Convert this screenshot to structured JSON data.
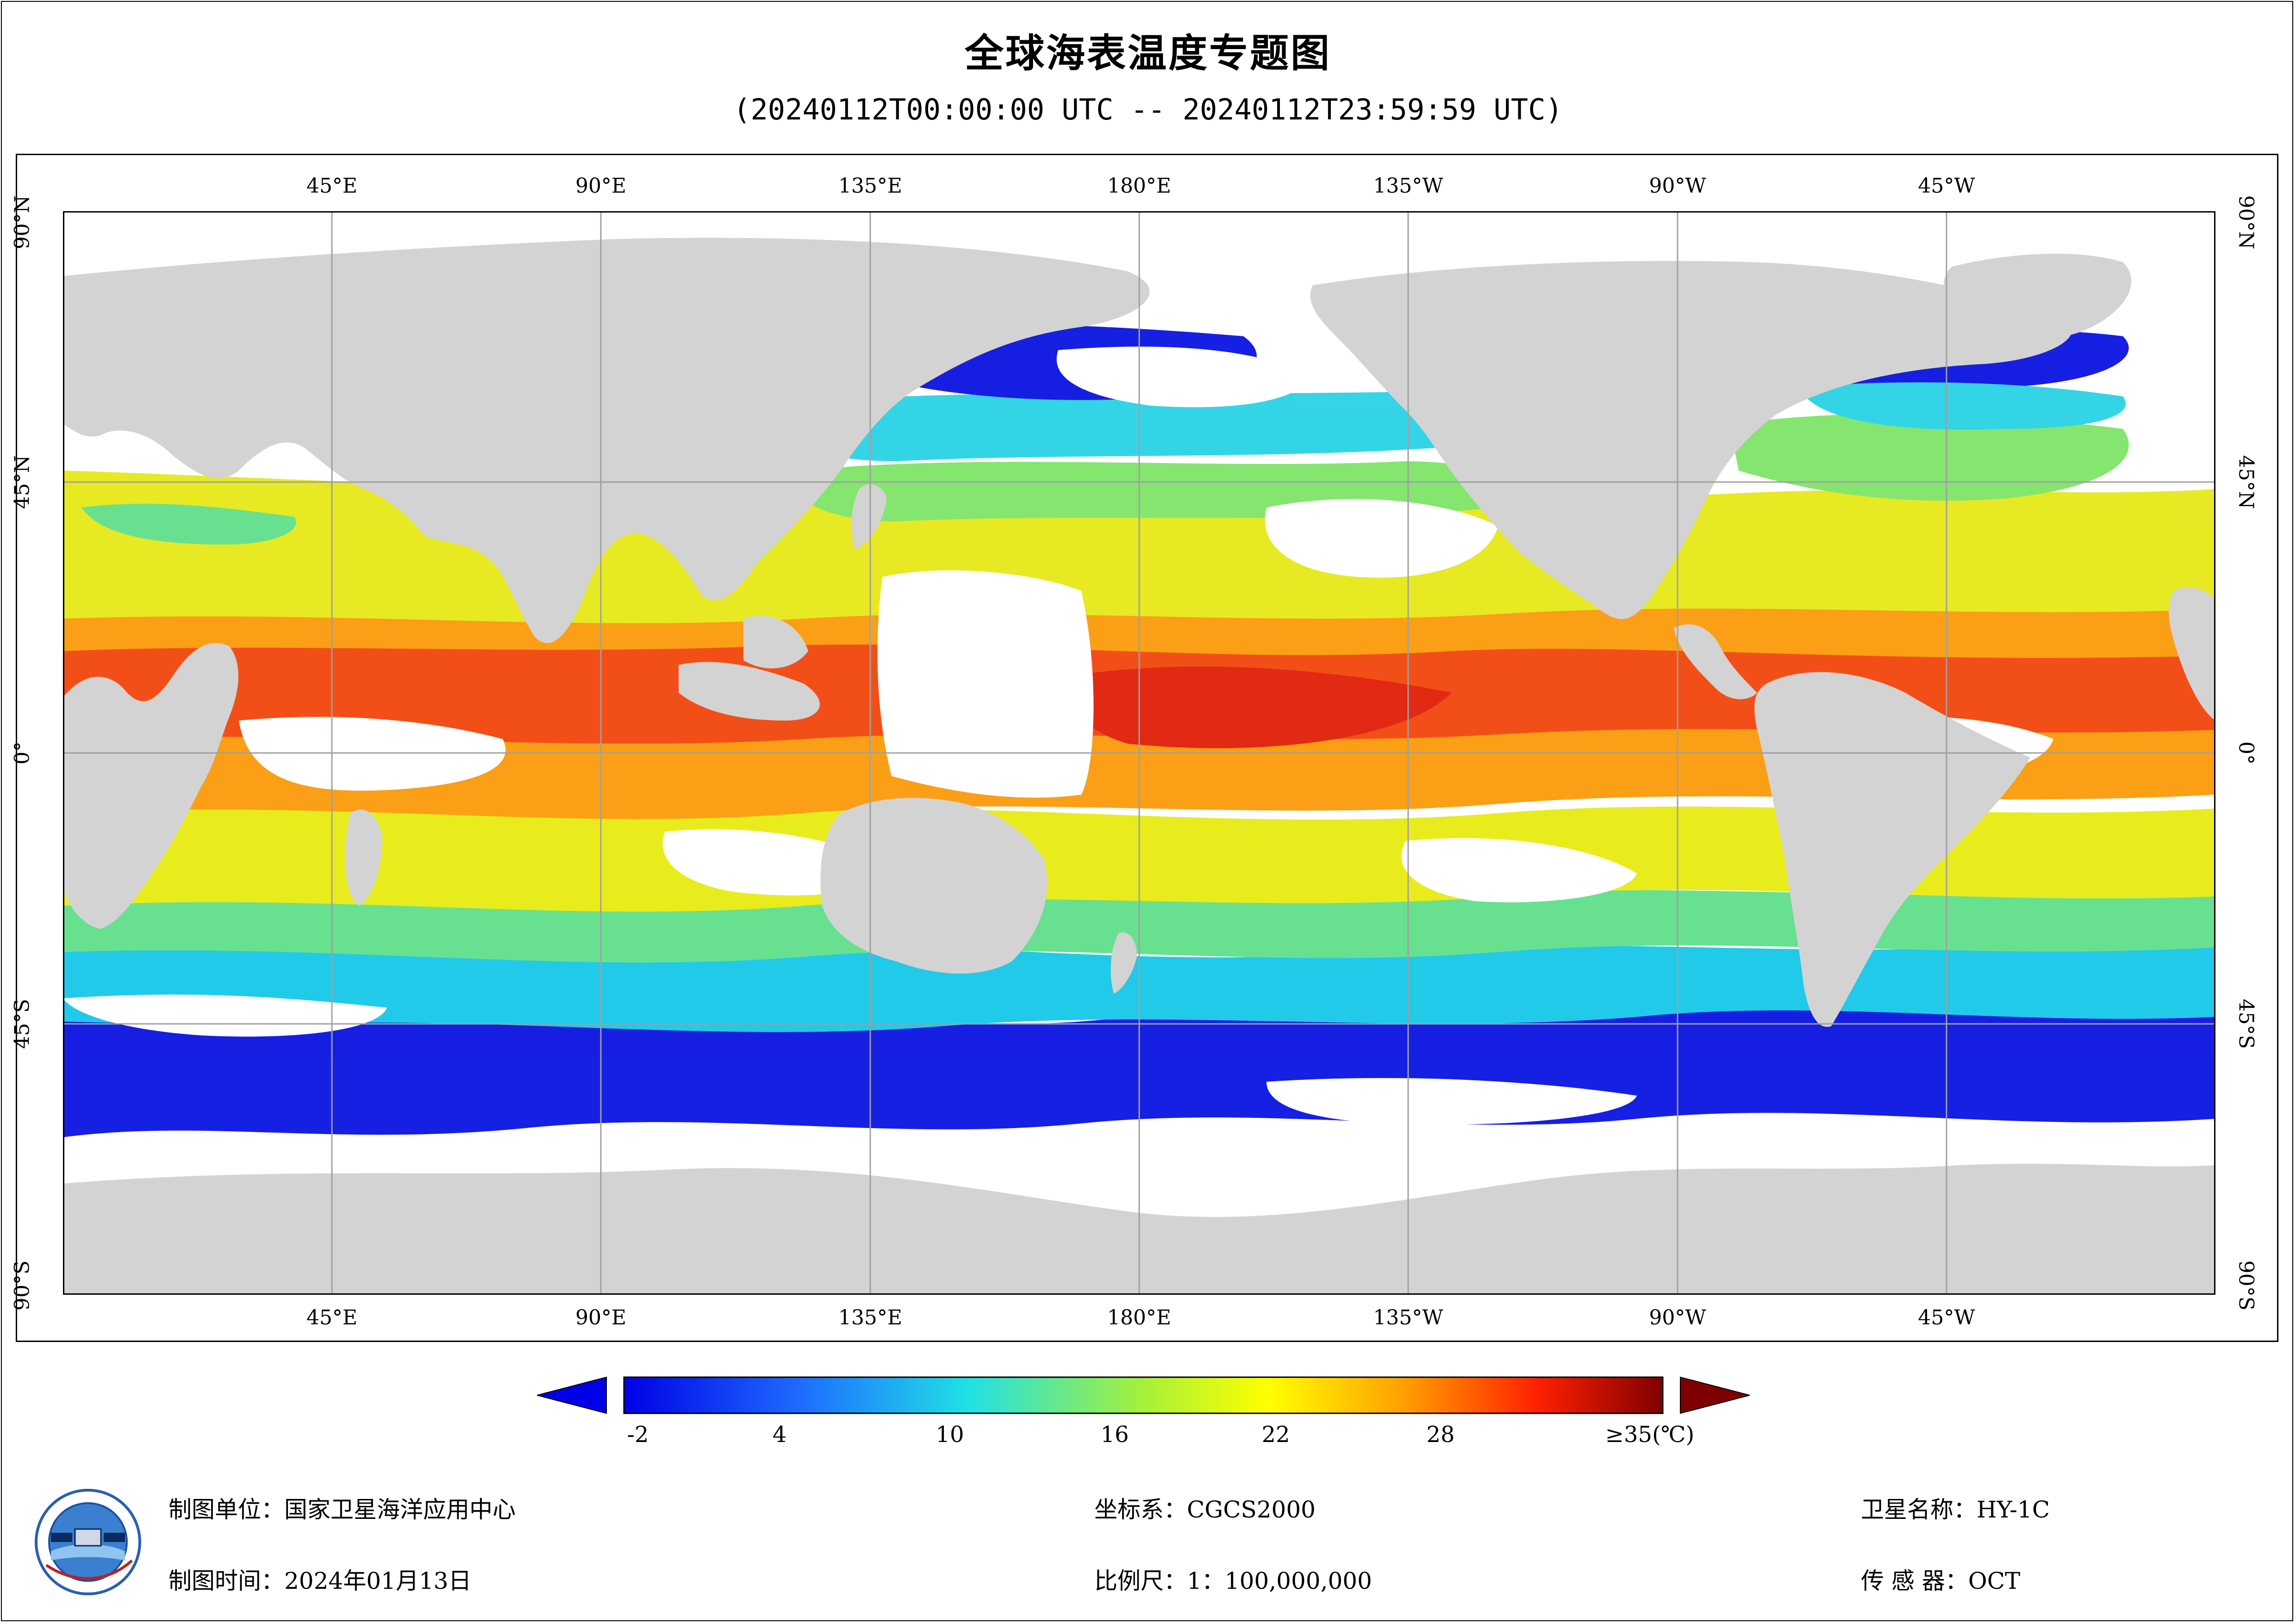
{
  "title": "全球海表温度专题图",
  "time_range": "(20240112T00:00:00 UTC -- 20240112T23:59:59 UTC)",
  "map": {
    "top_ticks": [
      "45°E",
      "90°E",
      "135°E",
      "180°E",
      "135°W",
      "90°W",
      "45°W"
    ],
    "bottom_ticks": [
      "45°E",
      "90°E",
      "135°E",
      "180°E",
      "135°W",
      "90°W",
      "45°W"
    ],
    "left_ticks": [
      "90°N",
      "45°N",
      "0°",
      "45°S",
      "90°S"
    ],
    "right_ticks": [
      "90°N",
      "45°N",
      "0°",
      "45°S",
      "90°S"
    ],
    "colors": {
      "land": "#d3d3d3",
      "no_data": "#ffffff",
      "grid": "#a0a0a0"
    }
  },
  "colorbar": {
    "labels": [
      "-2",
      "4",
      "10",
      "16",
      "22",
      "28",
      "≥35(℃)"
    ],
    "min": -2,
    "max": 35,
    "under_color": "#0000e6",
    "over_color": "#7f0000"
  },
  "footer": {
    "org_label": "制图单位：",
    "org_value": "国家卫星海洋应用中心",
    "date_label": "制图时间：",
    "date_value": "2024年01月13日",
    "crs_label": "坐标系：",
    "crs_value": "CGCS2000",
    "scale_label": "比例尺：",
    "scale_value": "1：100,000,000",
    "sat_label": "卫星名称：",
    "sat_value": "HY-1C",
    "sensor_label": "传 感 器：",
    "sensor_value": "OCT"
  }
}
